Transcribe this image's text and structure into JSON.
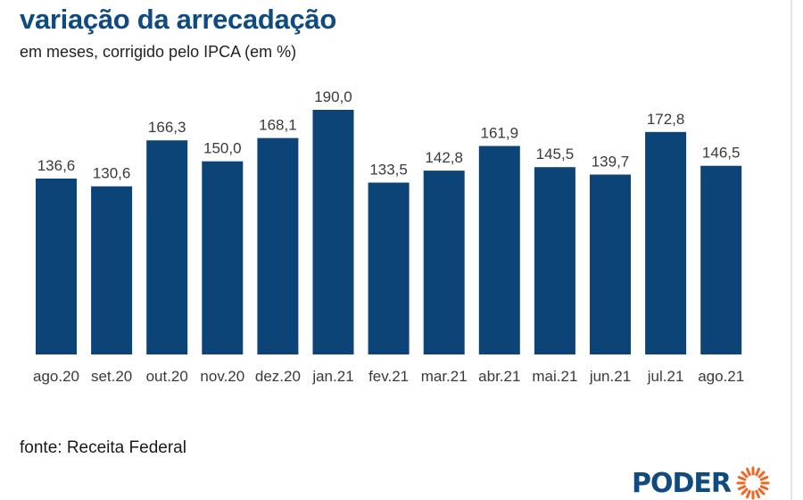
{
  "header": {
    "title": "variação da arrecadação",
    "subtitle": "em meses, corrigido pelo IPCA (em %)"
  },
  "footer": {
    "source": "fonte: Receita Federal",
    "logo_text": "PODER"
  },
  "colors": {
    "bar": "#0d4478",
    "title": "#0f4a80",
    "logo_accent": "#f26522"
  },
  "chart_data": {
    "type": "bar",
    "categories": [
      "ago.20",
      "set.20",
      "out.20",
      "nov.20",
      "dez.20",
      "jan.21",
      "fev.21",
      "mar.21",
      "abr.21",
      "mai.21",
      "jun.21",
      "jul.21",
      "ago.21"
    ],
    "values": [
      136.6,
      130.6,
      166.3,
      150.0,
      168.1,
      190.0,
      133.5,
      142.8,
      161.9,
      145.5,
      139.7,
      172.8,
      146.5
    ],
    "value_labels": [
      "136,6",
      "130,6",
      "166,3",
      "150,0",
      "168,1",
      "190,0",
      "133,5",
      "142,8",
      "161,9",
      "145,5",
      "139,7",
      "172,8",
      "146,5"
    ],
    "title": "variação da arrecadação",
    "subtitle": "em meses, corrigido pelo IPCA (em %)",
    "ylim": [
      0,
      190
    ],
    "grid": false,
    "legend": "none"
  }
}
